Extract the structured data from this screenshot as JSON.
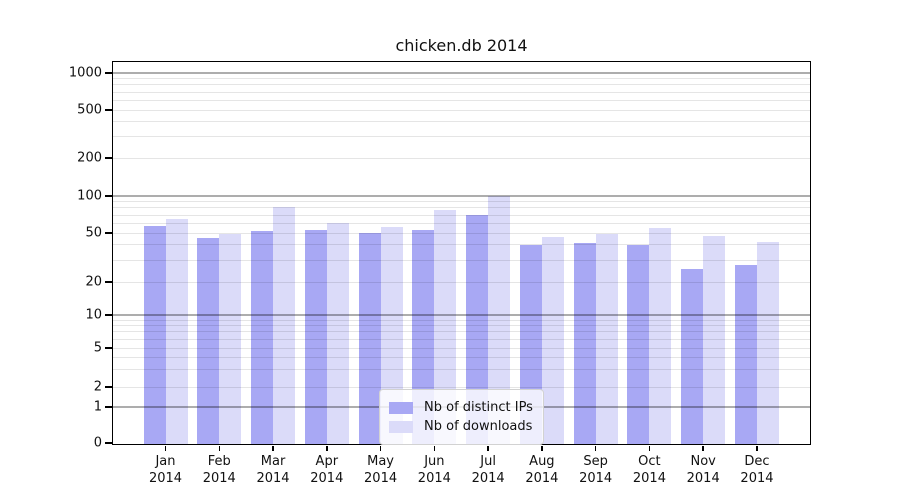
{
  "title": "chicken.db 2014",
  "y_axis": {
    "ticks": [
      {
        "label": "1000",
        "value": 1000
      },
      {
        "label": "500",
        "value": 500
      },
      {
        "label": "200",
        "value": 200
      },
      {
        "label": "100",
        "value": 100
      },
      {
        "label": "50",
        "value": 50
      },
      {
        "label": "20",
        "value": 20
      },
      {
        "label": "10",
        "value": 10
      },
      {
        "label": "5",
        "value": 5
      },
      {
        "label": "2",
        "value": 2
      },
      {
        "label": "1",
        "value": 1
      },
      {
        "label": "0",
        "value": 0
      }
    ]
  },
  "x_axis": {
    "months": [
      "Jan",
      "Feb",
      "Mar",
      "Apr",
      "May",
      "Jun",
      "Jul",
      "Aug",
      "Sep",
      "Oct",
      "Nov",
      "Dec"
    ],
    "year": "2014"
  },
  "legend": {
    "items": [
      {
        "label": "Nb of distinct IPs",
        "color": "#a8a8f4"
      },
      {
        "label": "Nb of downloads",
        "color": "#dbdbf9"
      }
    ]
  },
  "chart_data": {
    "type": "bar",
    "title": "chicken.db 2014",
    "xlabel": "",
    "ylabel": "",
    "categories": [
      "Jan 2014",
      "Feb 2014",
      "Mar 2014",
      "Apr 2014",
      "May 2014",
      "Jun 2014",
      "Jul 2014",
      "Aug 2014",
      "Sep 2014",
      "Oct 2014",
      "Nov 2014",
      "Dec 2014"
    ],
    "series": [
      {
        "name": "Nb of distinct IPs",
        "color": "#a8a8f4",
        "values": [
          58,
          46,
          53,
          54,
          51,
          54,
          72,
          41,
          42,
          41,
          26,
          28
        ]
      },
      {
        "name": "Nb of downloads",
        "color": "#dbdbf9",
        "values": [
          66,
          50,
          83,
          61,
          57,
          78,
          102,
          47,
          50,
          56,
          48,
          43
        ]
      }
    ],
    "y_scale": "symlog",
    "y_ticks": [
      0,
      1,
      2,
      5,
      10,
      20,
      50,
      100,
      200,
      500,
      1000
    ],
    "ylim": [
      0,
      1200
    ],
    "grid": true,
    "grid_which": "both",
    "legend_position": "lower center"
  }
}
